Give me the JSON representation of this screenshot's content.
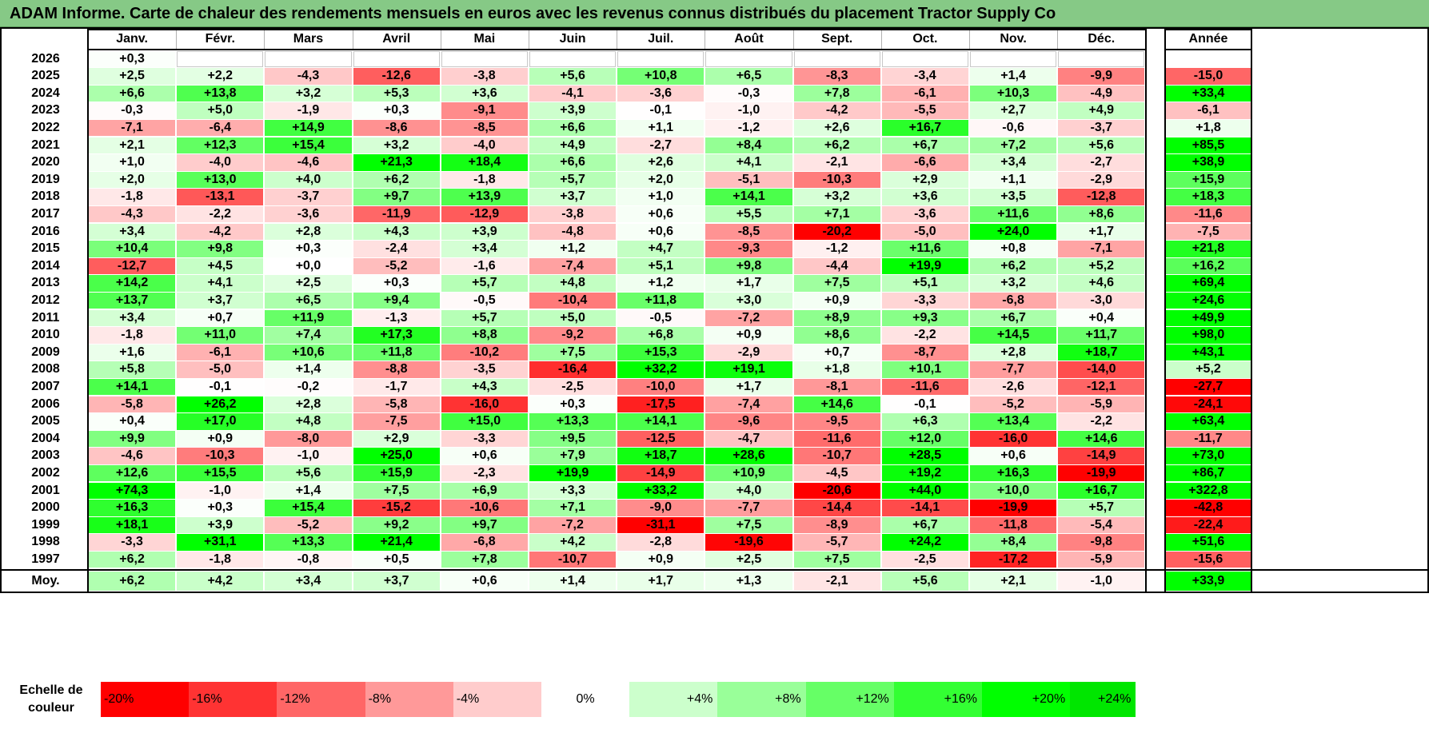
{
  "title": "ADAM Informe. Carte de chaleur des rendements mensuels en euros avec les revenus connus distribués du placement Tractor Supply Co",
  "chart_data": {
    "type": "heatmap",
    "title": "ADAM Informe. Carte de chaleur des rendements mensuels en euros avec les revenus connus distribués du placement Tractor Supply Co",
    "months": [
      "Janv.",
      "Févr.",
      "Mars",
      "Avril",
      "Mai",
      "Juin",
      "Juil.",
      "Août",
      "Sept.",
      "Oct.",
      "Nov.",
      "Déc."
    ],
    "year_header": "Année",
    "rows": [
      {
        "year": "2026",
        "values": [
          "+0,3",
          "",
          "",
          "",
          "",
          "",
          "",
          "",
          "",
          "",
          "",
          ""
        ],
        "annual": ""
      },
      {
        "year": "2025",
        "values": [
          "+2,5",
          "+2,2",
          "-4,3",
          "-12,6",
          "-3,8",
          "+5,6",
          "+10,8",
          "+6,5",
          "-8,3",
          "-3,4",
          "+1,4",
          "-9,9"
        ],
        "annual": "-15,0"
      },
      {
        "year": "2024",
        "values": [
          "+6,6",
          "+13,8",
          "+3,2",
          "+5,3",
          "+3,6",
          "-4,1",
          "-3,6",
          "-0,3",
          "+7,8",
          "-6,1",
          "+10,3",
          "-4,9"
        ],
        "annual": "+33,4"
      },
      {
        "year": "2023",
        "values": [
          "-0,3",
          "+5,0",
          "-1,9",
          "+0,3",
          "-9,1",
          "+3,9",
          "-0,1",
          "-1,0",
          "-4,2",
          "-5,5",
          "+2,7",
          "+4,9"
        ],
        "annual": "-6,1"
      },
      {
        "year": "2022",
        "values": [
          "-7,1",
          "-6,4",
          "+14,9",
          "-8,6",
          "-8,5",
          "+6,6",
          "+1,1",
          "-1,2",
          "+2,6",
          "+16,7",
          "-0,6",
          "-3,7"
        ],
        "annual": "+1,8"
      },
      {
        "year": "2021",
        "values": [
          "+2,1",
          "+12,3",
          "+15,4",
          "+3,2",
          "-4,0",
          "+4,9",
          "-2,7",
          "+8,4",
          "+6,2",
          "+6,7",
          "+7,2",
          "+5,6"
        ],
        "annual": "+85,5"
      },
      {
        "year": "2020",
        "values": [
          "+1,0",
          "-4,0",
          "-4,6",
          "+21,3",
          "+18,4",
          "+6,6",
          "+2,6",
          "+4,1",
          "-2,1",
          "-6,6",
          "+3,4",
          "-2,7"
        ],
        "annual": "+38,9"
      },
      {
        "year": "2019",
        "values": [
          "+2,0",
          "+13,0",
          "+4,0",
          "+6,2",
          "-1,8",
          "+5,7",
          "+2,0",
          "-5,1",
          "-10,3",
          "+2,9",
          "+1,1",
          "-2,9"
        ],
        "annual": "+15,9"
      },
      {
        "year": "2018",
        "values": [
          "-1,8",
          "-13,1",
          "-3,7",
          "+9,7",
          "+13,9",
          "+3,7",
          "+1,0",
          "+14,1",
          "+3,2",
          "+3,6",
          "+3,5",
          "-12,8"
        ],
        "annual": "+18,3"
      },
      {
        "year": "2017",
        "values": [
          "-4,3",
          "-2,2",
          "-3,6",
          "-11,9",
          "-12,9",
          "-3,8",
          "+0,6",
          "+5,5",
          "+7,1",
          "-3,6",
          "+11,6",
          "+8,6"
        ],
        "annual": "-11,6"
      },
      {
        "year": "2016",
        "values": [
          "+3,4",
          "-4,2",
          "+2,8",
          "+4,3",
          "+3,9",
          "-4,8",
          "+0,6",
          "-8,5",
          "-20,2",
          "-5,0",
          "+24,0",
          "+1,7"
        ],
        "annual": "-7,5"
      },
      {
        "year": "2015",
        "values": [
          "+10,4",
          "+9,8",
          "+0,3",
          "-2,4",
          "+3,4",
          "+1,2",
          "+4,7",
          "-9,3",
          "-1,2",
          "+11,6",
          "+0,8",
          "-7,1"
        ],
        "annual": "+21,8"
      },
      {
        "year": "2014",
        "values": [
          "-12,7",
          "+4,5",
          "+0,0",
          "-5,2",
          "-1,6",
          "-7,4",
          "+5,1",
          "+9,8",
          "-4,4",
          "+19,9",
          "+6,2",
          "+5,2"
        ],
        "annual": "+16,2"
      },
      {
        "year": "2013",
        "values": [
          "+14,2",
          "+4,1",
          "+2,5",
          "+0,3",
          "+5,7",
          "+4,8",
          "+1,2",
          "+1,7",
          "+7,5",
          "+5,1",
          "+3,2",
          "+4,6"
        ],
        "annual": "+69,4"
      },
      {
        "year": "2012",
        "values": [
          "+13,7",
          "+3,7",
          "+6,5",
          "+9,4",
          "-0,5",
          "-10,4",
          "+11,8",
          "+3,0",
          "+0,9",
          "-3,3",
          "-6,8",
          "-3,0"
        ],
        "annual": "+24,6"
      },
      {
        "year": "2011",
        "values": [
          "+3,4",
          "+0,7",
          "+11,9",
          "-1,3",
          "+5,7",
          "+5,0",
          "-0,5",
          "-7,2",
          "+8,9",
          "+9,3",
          "+6,7",
          "+0,4"
        ],
        "annual": "+49,9"
      },
      {
        "year": "2010",
        "values": [
          "-1,8",
          "+11,0",
          "+7,4",
          "+17,3",
          "+8,8",
          "-9,2",
          "+6,8",
          "+0,9",
          "+8,6",
          "-2,2",
          "+14,5",
          "+11,7"
        ],
        "annual": "+98,0"
      },
      {
        "year": "2009",
        "values": [
          "+1,6",
          "-6,1",
          "+10,6",
          "+11,8",
          "-10,2",
          "+7,5",
          "+15,3",
          "-2,9",
          "+0,7",
          "-8,7",
          "+2,8",
          "+18,7"
        ],
        "annual": "+43,1"
      },
      {
        "year": "2008",
        "values": [
          "+5,8",
          "-5,0",
          "+1,4",
          "-8,8",
          "-3,5",
          "-16,4",
          "+32,2",
          "+19,1",
          "+1,8",
          "+10,1",
          "-7,7",
          "-14,0"
        ],
        "annual": "+5,2"
      },
      {
        "year": "2007",
        "values": [
          "+14,1",
          "-0,1",
          "-0,2",
          "-1,7",
          "+4,3",
          "-2,5",
          "-10,0",
          "+1,7",
          "-8,1",
          "-11,6",
          "-2,6",
          "-12,1"
        ],
        "annual": "-27,7"
      },
      {
        "year": "2006",
        "values": [
          "-5,8",
          "+26,2",
          "+2,8",
          "-5,8",
          "-16,0",
          "+0,3",
          "-17,5",
          "-7,4",
          "+14,6",
          "-0,1",
          "-5,2",
          "-5,9"
        ],
        "annual": "-24,1"
      },
      {
        "year": "2005",
        "values": [
          "+0,4",
          "+17,0",
          "+4,8",
          "-7,5",
          "+15,0",
          "+13,3",
          "+14,1",
          "-9,6",
          "-9,5",
          "+6,3",
          "+13,4",
          "-2,2"
        ],
        "annual": "+63,4"
      },
      {
        "year": "2004",
        "values": [
          "+9,9",
          "+0,9",
          "-8,0",
          "+2,9",
          "-3,3",
          "+9,5",
          "-12,5",
          "-4,7",
          "-11,6",
          "+12,0",
          "-16,0",
          "+14,6"
        ],
        "annual": "-11,7"
      },
      {
        "year": "2003",
        "values": [
          "-4,6",
          "-10,3",
          "-1,0",
          "+25,0",
          "+0,6",
          "+7,9",
          "+18,7",
          "+28,6",
          "-10,7",
          "+28,5",
          "+0,6",
          "-14,9"
        ],
        "annual": "+73,0"
      },
      {
        "year": "2002",
        "values": [
          "+12,6",
          "+15,5",
          "+5,6",
          "+15,9",
          "-2,3",
          "+19,9",
          "-14,9",
          "+10,9",
          "-4,5",
          "+19,2",
          "+16,3",
          "-19,9"
        ],
        "annual": "+86,7"
      },
      {
        "year": "2001",
        "values": [
          "+74,3",
          "-1,0",
          "+1,4",
          "+7,5",
          "+6,9",
          "+3,3",
          "+33,2",
          "+4,0",
          "-20,6",
          "+44,0",
          "+10,0",
          "+16,7"
        ],
        "annual": "+322,8"
      },
      {
        "year": "2000",
        "values": [
          "+16,3",
          "+0,3",
          "+15,4",
          "-15,2",
          "-10,6",
          "+7,1",
          "-9,0",
          "-7,7",
          "-14,4",
          "-14,1",
          "-19,9",
          "+5,7"
        ],
        "annual": "-42,8"
      },
      {
        "year": "1999",
        "values": [
          "+18,1",
          "+3,9",
          "-5,2",
          "+9,2",
          "+9,7",
          "-7,2",
          "-31,1",
          "+7,5",
          "-8,9",
          "+6,7",
          "-11,8",
          "-5,4"
        ],
        "annual": "-22,4"
      },
      {
        "year": "1998",
        "values": [
          "-3,3",
          "+31,1",
          "+13,3",
          "+21,4",
          "-6,8",
          "+4,2",
          "-2,8",
          "-19,6",
          "-5,7",
          "+24,2",
          "+8,4",
          "-9,8"
        ],
        "annual": "+51,6"
      },
      {
        "year": "1997",
        "values": [
          "+6,2",
          "-1,8",
          "-0,8",
          "+0,5",
          "+7,8",
          "-10,7",
          "+0,9",
          "+2,5",
          "+7,5",
          "-2,5",
          "-17,2",
          "-5,9"
        ],
        "annual": "-15,6"
      }
    ],
    "average": {
      "label": "Moy.",
      "values": [
        "+6,2",
        "+4,2",
        "+3,4",
        "+3,7",
        "+0,6",
        "+1,4",
        "+1,7",
        "+1,3",
        "-2,1",
        "+5,6",
        "+2,1",
        "-1,0"
      ],
      "annual": "+33,9"
    },
    "scale": {
      "label_line1": "Echelle de",
      "label_line2": "couleur",
      "stops": [
        {
          "label": "-20%",
          "value": -20,
          "color": "#ff0000"
        },
        {
          "label": "-16%",
          "value": -16,
          "color": "#ff3333"
        },
        {
          "label": "-12%",
          "value": -12,
          "color": "#ff6666"
        },
        {
          "label": "-8%",
          "value": -8,
          "color": "#ff9999"
        },
        {
          "label": "-4%",
          "value": -4,
          "color": "#ffcccc"
        },
        {
          "label": "0%",
          "value": 0,
          "color": "#ffffff"
        },
        {
          "label": "+4%",
          "value": 4,
          "color": "#ccffcc"
        },
        {
          "label": "+8%",
          "value": 8,
          "color": "#99ff99"
        },
        {
          "label": "+12%",
          "value": 12,
          "color": "#66ff66"
        },
        {
          "label": "+16%",
          "value": 16,
          "color": "#33ff33"
        },
        {
          "label": "+20%",
          "value": 20,
          "color": "#00ff00"
        },
        {
          "label": "+24%",
          "value": 24,
          "color": "#00e600"
        }
      ]
    },
    "colors": {
      "negative_max": "#ff0000",
      "neutral": "#ffffff",
      "positive_max": "#00ff00",
      "title_bar": "#86c986"
    }
  }
}
